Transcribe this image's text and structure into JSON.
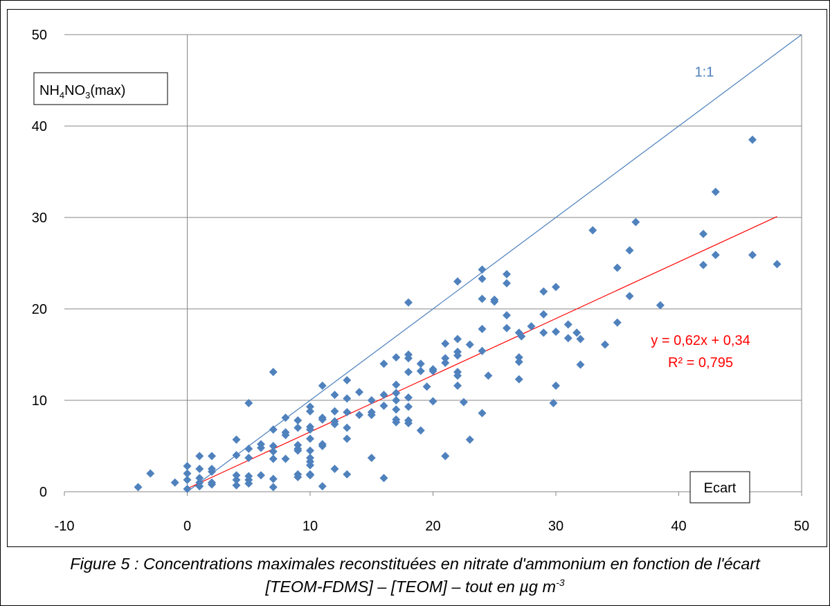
{
  "chart_data": {
    "type": "scatter",
    "xlabel": "Ecart",
    "ylabel_main": "NH",
    "ylabel_sub1": "4",
    "ylabel_mid": "NO",
    "ylabel_sub2": "3",
    "ylabel_suffix": "(max)",
    "xlim": [
      -10,
      50
    ],
    "ylim": [
      0,
      50
    ],
    "xticks": [
      -10,
      0,
      10,
      20,
      30,
      40,
      50
    ],
    "yticks": [
      0,
      10,
      20,
      30,
      40,
      50
    ],
    "grid": "horizontal",
    "series": [
      {
        "marker": "diamond",
        "color": "#4f81bd",
        "points": [
          [
            -4,
            0.5
          ],
          [
            -3,
            2
          ],
          [
            -1,
            1
          ],
          [
            0,
            2.8
          ],
          [
            0,
            2
          ],
          [
            0,
            1.3
          ],
          [
            0,
            0.3
          ],
          [
            1,
            3.9
          ],
          [
            1,
            2.5
          ],
          [
            1,
            1.5
          ],
          [
            1,
            1
          ],
          [
            1,
            0.6
          ],
          [
            2,
            3.9
          ],
          [
            2,
            2.5
          ],
          [
            2,
            2.2
          ],
          [
            2,
            1
          ],
          [
            2,
            0.8
          ],
          [
            4,
            5.7
          ],
          [
            4,
            4
          ],
          [
            4,
            1.8
          ],
          [
            4,
            1.3
          ],
          [
            4,
            0.7
          ],
          [
            5,
            9.7
          ],
          [
            5,
            4.7
          ],
          [
            5,
            3.7
          ],
          [
            5,
            1.7
          ],
          [
            5,
            1.3
          ],
          [
            5,
            0.9
          ],
          [
            6,
            5.2
          ],
          [
            6,
            4.8
          ],
          [
            6,
            1.8
          ],
          [
            7,
            13.1
          ],
          [
            7,
            6.8
          ],
          [
            7,
            5
          ],
          [
            7,
            4.4
          ],
          [
            7,
            3.6
          ],
          [
            7,
            1.4
          ],
          [
            7,
            0.5
          ],
          [
            8,
            8.1
          ],
          [
            8,
            6.5
          ],
          [
            8,
            6.2
          ],
          [
            8,
            3.6
          ],
          [
            9,
            7.8
          ],
          [
            9,
            7
          ],
          [
            9,
            5.1
          ],
          [
            9,
            4.7
          ],
          [
            9,
            4.5
          ],
          [
            9,
            1.9
          ],
          [
            9,
            1.6
          ],
          [
            10,
            9.3
          ],
          [
            10,
            8.8
          ],
          [
            10,
            7.1
          ],
          [
            10,
            6.8
          ],
          [
            10,
            5.8
          ],
          [
            10,
            4.5
          ],
          [
            10,
            3.7
          ],
          [
            10,
            3.3
          ],
          [
            10,
            2.9
          ],
          [
            10,
            1.9
          ],
          [
            10,
            1.8
          ],
          [
            11,
            11.6
          ],
          [
            11,
            8.1
          ],
          [
            11,
            7.9
          ],
          [
            11,
            5.2
          ],
          [
            11,
            5
          ],
          [
            11,
            0.6
          ],
          [
            12,
            10.6
          ],
          [
            12,
            8.8
          ],
          [
            12,
            7.7
          ],
          [
            12,
            7.4
          ],
          [
            12,
            2.5
          ],
          [
            13,
            12.2
          ],
          [
            13,
            10.2
          ],
          [
            13,
            8.7
          ],
          [
            13,
            7
          ],
          [
            13,
            5.8
          ],
          [
            13,
            1.9
          ],
          [
            14,
            10.9
          ],
          [
            14,
            8.4
          ],
          [
            15,
            10
          ],
          [
            15,
            8.7
          ],
          [
            15,
            8.4
          ],
          [
            15,
            3.7
          ],
          [
            16,
            14
          ],
          [
            16,
            10.6
          ],
          [
            16,
            9.4
          ],
          [
            16,
            1.5
          ],
          [
            17,
            14.7
          ],
          [
            17,
            11.7
          ],
          [
            17,
            10.8
          ],
          [
            17,
            10
          ],
          [
            17,
            9
          ],
          [
            17,
            7.9
          ],
          [
            17,
            7.6
          ],
          [
            18,
            20.7
          ],
          [
            18,
            15
          ],
          [
            18,
            14.6
          ],
          [
            18,
            13.1
          ],
          [
            18,
            10.3
          ],
          [
            18,
            9.3
          ],
          [
            18,
            7.8
          ],
          [
            18,
            7.5
          ],
          [
            19,
            14
          ],
          [
            19,
            13.2
          ],
          [
            19,
            6.7
          ],
          [
            19.5,
            11.5
          ],
          [
            20,
            13.4
          ],
          [
            20,
            13.2
          ],
          [
            20,
            9.9
          ],
          [
            21,
            16.2
          ],
          [
            21,
            14.6
          ],
          [
            21,
            14.1
          ],
          [
            21,
            3.9
          ],
          [
            22,
            23
          ],
          [
            22,
            16.7
          ],
          [
            22,
            15.3
          ],
          [
            22,
            14.9
          ],
          [
            22,
            13.1
          ],
          [
            22,
            12.7
          ],
          [
            22,
            11.6
          ],
          [
            22.5,
            9.8
          ],
          [
            23,
            16.1
          ],
          [
            23,
            5.7
          ],
          [
            24,
            24.3
          ],
          [
            24,
            23.3
          ],
          [
            24,
            21.1
          ],
          [
            24,
            17.8
          ],
          [
            24,
            15.4
          ],
          [
            24,
            8.6
          ],
          [
            24.5,
            12.7
          ],
          [
            25,
            21
          ],
          [
            25,
            20.8
          ],
          [
            26,
            23.8
          ],
          [
            26,
            22.8
          ],
          [
            26,
            19.3
          ],
          [
            26,
            17.9
          ],
          [
            27,
            17.4
          ],
          [
            27,
            14.7
          ],
          [
            27,
            14.2
          ],
          [
            27,
            12.3
          ],
          [
            27.2,
            17
          ],
          [
            28,
            18.1
          ],
          [
            29,
            21.9
          ],
          [
            29,
            19.4
          ],
          [
            29,
            17.4
          ],
          [
            29.8,
            9.7
          ],
          [
            30,
            22.4
          ],
          [
            30,
            17.5
          ],
          [
            30,
            11.6
          ],
          [
            31,
            18.3
          ],
          [
            31,
            16.8
          ],
          [
            31.7,
            17.4
          ],
          [
            32,
            16.7
          ],
          [
            32,
            13.9
          ],
          [
            33,
            28.6
          ],
          [
            34,
            16.1
          ],
          [
            35,
            24.5
          ],
          [
            35,
            18.5
          ],
          [
            36,
            26.4
          ],
          [
            36,
            21.4
          ],
          [
            36.5,
            29.5
          ],
          [
            38.5,
            20.4
          ],
          [
            42,
            28.2
          ],
          [
            42,
            24.8
          ],
          [
            43,
            32.8
          ],
          [
            43,
            25.9
          ],
          [
            46,
            38.5
          ],
          [
            46,
            25.9
          ],
          [
            48,
            24.9
          ]
        ]
      }
    ],
    "identity_line": {
      "label": "1:1",
      "color": "#4a7ebb",
      "from": [
        0,
        0
      ],
      "to": [
        50,
        50
      ]
    },
    "trendline": {
      "color": "#ff0000",
      "from": [
        0,
        0.34
      ],
      "to": [
        48,
        30.1
      ],
      "equation": "y = 0,62x + 0,34",
      "r2": "R² = 0,795"
    }
  },
  "caption": {
    "line1": "Figure 5 : Concentrations maximales reconstituées en nitrate d'ammonium en fonction de l'écart",
    "line2": "[TEOM-FDMS] – [TEOM] – tout en µg m",
    "line2_sup": "-3"
  }
}
